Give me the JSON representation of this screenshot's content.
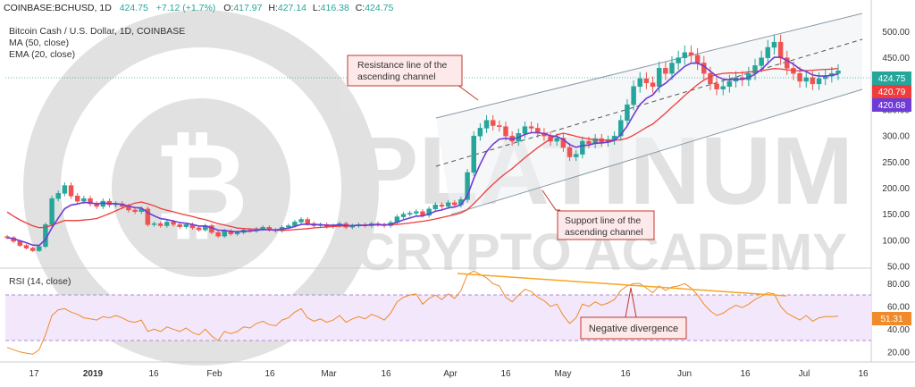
{
  "header": {
    "symbol": "COINBASE:BCHUSD, 1D",
    "last": "424.75",
    "change": "+7.12 (+1.7%)",
    "o_label": "O:",
    "o": "417.97",
    "h_label": "H:",
    "h": "427.14",
    "l_label": "L:",
    "l": "416.38",
    "c_label": "C:",
    "c": "424.75",
    "title": "Bitcoin Cash / U.S. Dollar, 1D, COINBASE",
    "ma_label": "MA (50, close)",
    "ema_label": "EMA (20, close)"
  },
  "watermark": {
    "line1": "PLATINUM",
    "line2": "CRYPTO ACADEMY"
  },
  "annotations": {
    "resistance": [
      "Resistance line of the",
      "ascending channel"
    ],
    "support": [
      "Support line of the",
      "ascending channel"
    ],
    "divergence": "Negative divergence"
  },
  "rsi": {
    "label": "RSI (14, close)",
    "value_tag": "51.31"
  },
  "price_tags": {
    "last": "424.75",
    "ma": "420.79",
    "ema": "420.68"
  },
  "colors": {
    "up": "#26a69a",
    "down": "#ef5350",
    "ma": "#ef3b3b",
    "ema": "#6f3bd6",
    "rsi": "#f08a2a",
    "channel": "#7f8c99",
    "divergence_line": "#f5a623",
    "annotation_box": "#fde9e9",
    "annotation_border": "#c0392b",
    "rsi_band": "#f3e7fb"
  },
  "chart_data": [
    {
      "type": "candlestick",
      "title": "Bitcoin Cash / U.S. Dollar, 1D, COINBASE",
      "x_ticks": [
        "17",
        "2019",
        "16",
        "Feb",
        "16",
        "Mar",
        "16",
        "Apr",
        "16",
        "May",
        "16",
        "Jun",
        "16",
        "Jul",
        "16"
      ],
      "y_ticks": [
        50,
        100,
        150,
        200,
        250,
        300,
        350,
        400,
        450,
        500
      ],
      "ylim": [
        50,
        530
      ],
      "grid": false,
      "series": [
        {
          "name": "BCHUSD",
          "ohlc_close": [
            105,
            98,
            90,
            85,
            80,
            88,
            130,
            180,
            190,
            205,
            185,
            175,
            180,
            170,
            165,
            175,
            168,
            170,
            165,
            158,
            155,
            160,
            130,
            132,
            128,
            135,
            130,
            126,
            130,
            124,
            120,
            128,
            115,
            108,
            118,
            112,
            115,
            120,
            118,
            122,
            125,
            120,
            118,
            125,
            128,
            135,
            140,
            132,
            128,
            130,
            126,
            128,
            132,
            125,
            128,
            130,
            128,
            132,
            130,
            128,
            134,
            145,
            150,
            152,
            155,
            148,
            160,
            168,
            165,
            172,
            168,
            178,
            230,
            300,
            315,
            330,
            320,
            318,
            300,
            290,
            305,
            318,
            315,
            306,
            300,
            290,
            296,
            278,
            260,
            265,
            290,
            285,
            295,
            288,
            292,
            300,
            330,
            360,
            395,
            410,
            402,
            395,
            430,
            420,
            440,
            450,
            460,
            455,
            440,
            420,
            400,
            390,
            395,
            405,
            412,
            408,
            420,
            435,
            450,
            470,
            480,
            450,
            430,
            420,
            405,
            412,
            400,
            410,
            415,
            420,
            425
          ]
        },
        {
          "name": "MA (50, close)",
          "values": []
        },
        {
          "name": "EMA (20, close)",
          "values": []
        }
      ],
      "last_price": 424.75,
      "ma_last": 420.79,
      "ema_last": 420.68
    },
    {
      "type": "line",
      "title": "RSI (14, close)",
      "y_ticks": [
        20,
        40,
        60,
        80
      ],
      "ylim": [
        12,
        92
      ],
      "bands": [
        30,
        70
      ],
      "series": [
        {
          "name": "RSI (14, close)",
          "values": [
            24,
            22,
            20,
            19,
            18,
            22,
            35,
            52,
            57,
            58,
            55,
            53,
            50,
            49,
            48,
            51,
            50,
            52,
            50,
            47,
            46,
            48,
            38,
            40,
            38,
            42,
            40,
            38,
            41,
            37,
            35,
            40,
            34,
            30,
            38,
            36,
            38,
            42,
            41,
            45,
            47,
            44,
            43,
            48,
            50,
            55,
            58,
            50,
            47,
            49,
            46,
            48,
            52,
            46,
            49,
            51,
            49,
            53,
            51,
            48,
            54,
            64,
            68,
            70,
            71,
            62,
            67,
            70,
            66,
            71,
            67,
            74,
            88,
            91,
            88,
            85,
            80,
            78,
            68,
            64,
            70,
            75,
            73,
            68,
            65,
            60,
            62,
            52,
            45,
            50,
            62,
            60,
            64,
            61,
            63,
            66,
            74,
            78,
            80,
            80,
            76,
            72,
            78,
            74,
            77,
            78,
            80,
            76,
            70,
            62,
            56,
            52,
            54,
            58,
            61,
            59,
            62,
            66,
            69,
            72,
            71,
            60,
            54,
            51,
            48,
            52,
            47,
            50,
            51,
            51,
            51.31
          ]
        }
      ],
      "last_value": 51.31
    }
  ]
}
